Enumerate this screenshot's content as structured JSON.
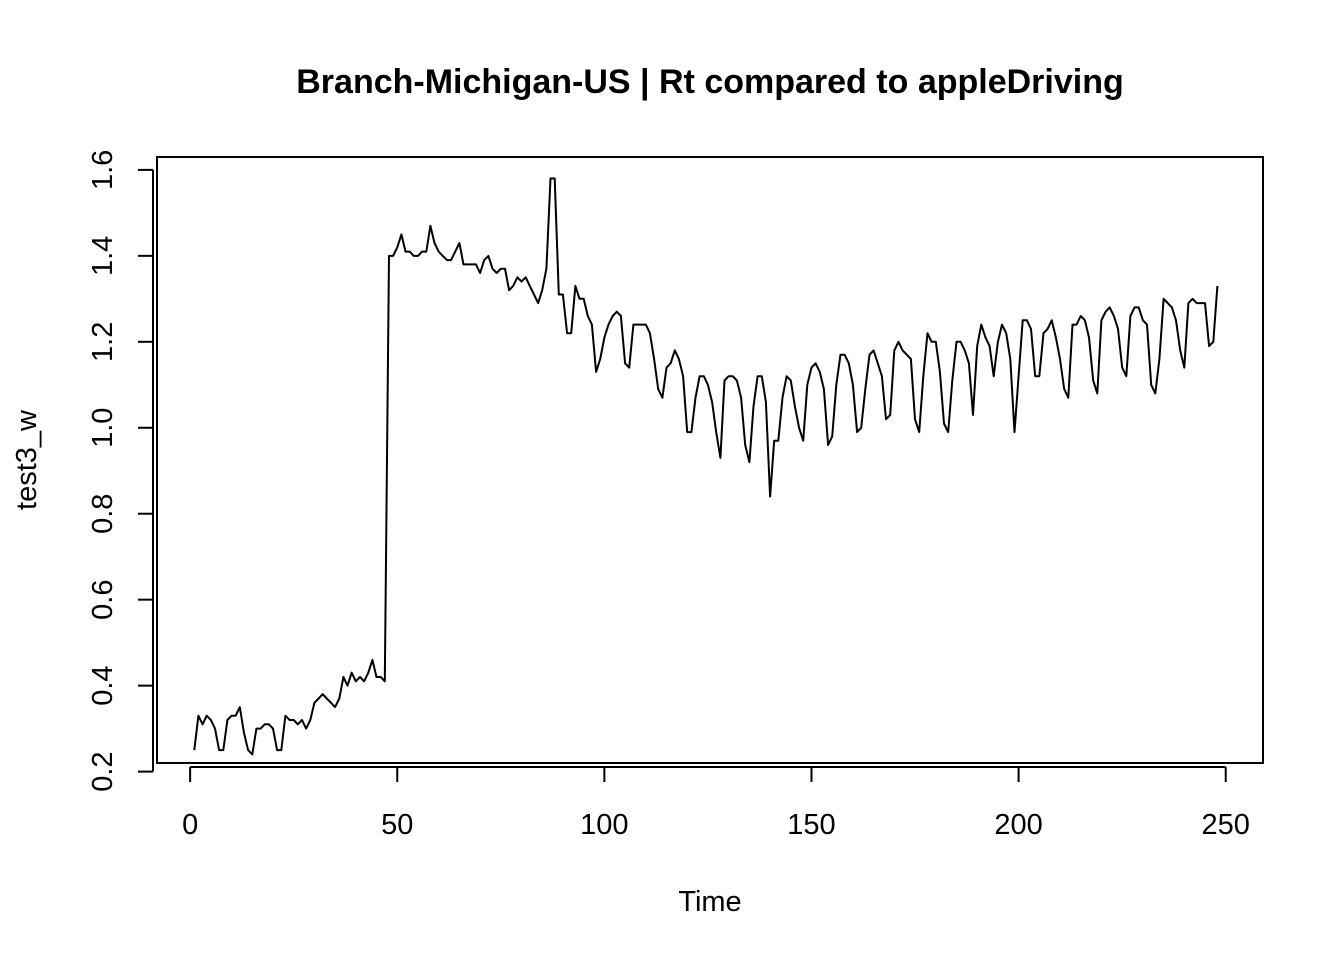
{
  "chart_data": {
    "type": "line",
    "title": "Branch-Michigan-US | Rt compared to appleDriving",
    "xlabel": "Time",
    "ylabel": "test3_w",
    "xlim": [
      -8,
      259
    ],
    "ylim": [
      0.22,
      1.63
    ],
    "x_ticks": [
      0,
      50,
      100,
      150,
      200,
      250
    ],
    "y_ticks": [
      0.2,
      0.4,
      0.6,
      0.8,
      1.0,
      1.2,
      1.4,
      1.6
    ],
    "x_tick_labels": [
      "0",
      "50",
      "100",
      "150",
      "200",
      "250"
    ],
    "y_tick_labels": [
      "0.2",
      "0.4",
      "0.6",
      "0.8",
      "1.0",
      "1.2",
      "1.4",
      "1.6"
    ],
    "grid": false,
    "line_color": "#000000",
    "series": [
      {
        "x": [
          1,
          2,
          3,
          4,
          5,
          6,
          7,
          8,
          9,
          10,
          11,
          12,
          13,
          14,
          15,
          16,
          17,
          18,
          19,
          20,
          21,
          22,
          23,
          24,
          25,
          26,
          27,
          28,
          29,
          30,
          31,
          32,
          33,
          34,
          35,
          36,
          37,
          38,
          39,
          40,
          41,
          42,
          43,
          44,
          45,
          46,
          47,
          48,
          49,
          50,
          51,
          52,
          53,
          54,
          55,
          56,
          57,
          58,
          59,
          60,
          61,
          62,
          63,
          64,
          65,
          66,
          67,
          68,
          69,
          70,
          71,
          72,
          73,
          74,
          75,
          76,
          77,
          78,
          79,
          80,
          81,
          82,
          83,
          84,
          85,
          86,
          87,
          88,
          89,
          90,
          91,
          92,
          93,
          94,
          95,
          96,
          97,
          98,
          99,
          100,
          101,
          102,
          103,
          104,
          105,
          106,
          107,
          108,
          109,
          110,
          111,
          112,
          113,
          114,
          115,
          116,
          117,
          118,
          119,
          120,
          121,
          122,
          123,
          124,
          125,
          126,
          127,
          128,
          129,
          130,
          131,
          132,
          133,
          134,
          135,
          136,
          137,
          138,
          139,
          140,
          141,
          142,
          143,
          144,
          145,
          146,
          147,
          148,
          149,
          150,
          151,
          152,
          153,
          154,
          155,
          156,
          157,
          158,
          159,
          160,
          161,
          162,
          163,
          164,
          165,
          166,
          167,
          168,
          169,
          170,
          171,
          172,
          173,
          174,
          175,
          176,
          177,
          178,
          179,
          180,
          181,
          182,
          183,
          184,
          185,
          186,
          187,
          188,
          189,
          190,
          191,
          192,
          193,
          194,
          195,
          196,
          197,
          198,
          199,
          200,
          201,
          202,
          203,
          204,
          205,
          206,
          207,
          208,
          209,
          210,
          211,
          212,
          213,
          214,
          215,
          216,
          217,
          218,
          219,
          220,
          221,
          222,
          223,
          224,
          225,
          226,
          227,
          228,
          229,
          230,
          231,
          232,
          233,
          234,
          235,
          236,
          237,
          238,
          239,
          240,
          241,
          242,
          243,
          244,
          245,
          246,
          247,
          248
        ],
        "values": [
          0.25,
          0.33,
          0.31,
          0.33,
          0.32,
          0.3,
          0.25,
          0.25,
          0.32,
          0.33,
          0.33,
          0.35,
          0.29,
          0.25,
          0.24,
          0.3,
          0.3,
          0.31,
          0.31,
          0.3,
          0.25,
          0.25,
          0.33,
          0.32,
          0.32,
          0.31,
          0.32,
          0.3,
          0.32,
          0.36,
          0.37,
          0.38,
          0.37,
          0.36,
          0.35,
          0.37,
          0.42,
          0.4,
          0.43,
          0.41,
          0.42,
          0.41,
          0.43,
          0.46,
          0.42,
          0.42,
          0.41,
          1.4,
          1.4,
          1.42,
          1.45,
          1.41,
          1.41,
          1.4,
          1.4,
          1.41,
          1.41,
          1.47,
          1.43,
          1.41,
          1.4,
          1.39,
          1.39,
          1.41,
          1.43,
          1.38,
          1.38,
          1.38,
          1.38,
          1.36,
          1.39,
          1.4,
          1.37,
          1.36,
          1.37,
          1.37,
          1.32,
          1.33,
          1.35,
          1.34,
          1.35,
          1.33,
          1.31,
          1.29,
          1.32,
          1.37,
          1.58,
          1.58,
          1.31,
          1.31,
          1.22,
          1.22,
          1.33,
          1.3,
          1.3,
          1.26,
          1.24,
          1.13,
          1.16,
          1.21,
          1.24,
          1.26,
          1.27,
          1.26,
          1.15,
          1.14,
          1.24,
          1.24,
          1.24,
          1.24,
          1.22,
          1.16,
          1.09,
          1.07,
          1.14,
          1.15,
          1.18,
          1.16,
          1.12,
          0.99,
          0.99,
          1.07,
          1.12,
          1.12,
          1.1,
          1.06,
          0.99,
          0.93,
          1.11,
          1.12,
          1.12,
          1.11,
          1.07,
          0.96,
          0.92,
          1.05,
          1.12,
          1.12,
          1.06,
          0.84,
          0.97,
          0.97,
          1.07,
          1.12,
          1.11,
          1.05,
          1.0,
          0.97,
          1.1,
          1.14,
          1.15,
          1.13,
          1.09,
          0.96,
          0.98,
          1.1,
          1.17,
          1.17,
          1.15,
          1.1,
          0.99,
          1.0,
          1.09,
          1.17,
          1.18,
          1.15,
          1.12,
          1.02,
          1.03,
          1.18,
          1.2,
          1.18,
          1.17,
          1.16,
          1.02,
          0.99,
          1.12,
          1.22,
          1.2,
          1.2,
          1.13,
          1.01,
          0.99,
          1.11,
          1.2,
          1.2,
          1.18,
          1.15,
          1.03,
          1.19,
          1.24,
          1.21,
          1.19,
          1.12,
          1.2,
          1.24,
          1.22,
          1.16,
          0.99,
          1.12,
          1.25,
          1.25,
          1.23,
          1.12,
          1.12,
          1.22,
          1.23,
          1.25,
          1.21,
          1.16,
          1.09,
          1.07,
          1.24,
          1.24,
          1.26,
          1.25,
          1.21,
          1.11,
          1.08,
          1.25,
          1.27,
          1.28,
          1.26,
          1.23,
          1.14,
          1.12,
          1.26,
          1.28,
          1.28,
          1.25,
          1.24,
          1.1,
          1.08,
          1.16,
          1.3,
          1.29,
          1.28,
          1.25,
          1.18,
          1.14,
          1.29,
          1.3,
          1.29,
          1.29,
          1.29,
          1.19,
          1.2,
          1.33
        ]
      }
    ]
  }
}
